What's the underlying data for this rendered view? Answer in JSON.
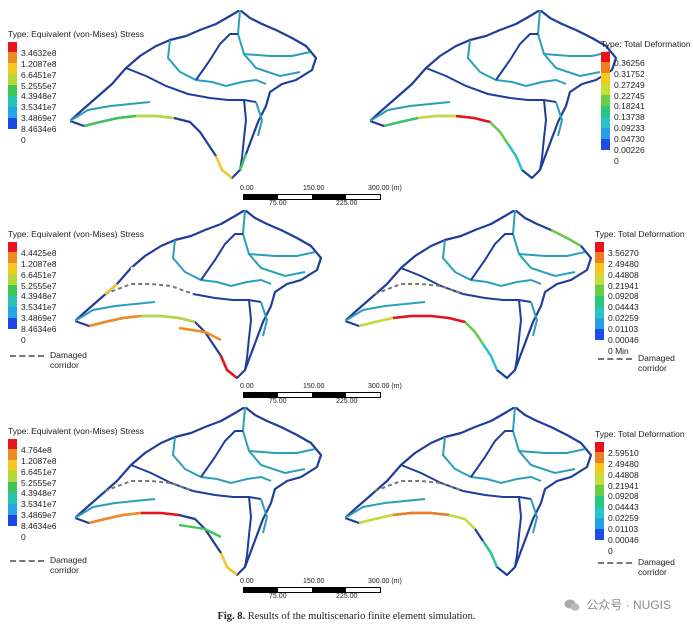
{
  "panels": {
    "r1_left": {
      "title": "Type: Equivalent (von-Mises) Stress",
      "levels": [
        "3.4632e8",
        "1.2087e8",
        "6.6451e7",
        "5.2555e7",
        "4.3948e7",
        "3.5341e7",
        "3.4869e7",
        "8.4634e6",
        "0"
      ],
      "damaged": false
    },
    "r1_right": {
      "title": "Type: Total Deformation",
      "levels": [
        "0.36256",
        "0.31752",
        "0.27249",
        "0.22745",
        "0.18241",
        "0.13738",
        "0.09233",
        "0.04730",
        "0.00226",
        "0"
      ],
      "damaged": false
    },
    "r2_left": {
      "title": "Type: Equivalent (von-Mises) Stress",
      "levels": [
        "4.4425e8",
        "1.2087e8",
        "6.6451e7",
        "5.2555e7",
        "4.3948e7",
        "3.5341e7",
        "3.4869e7",
        "8.4634e6",
        "0"
      ],
      "damaged": true
    },
    "r2_right": {
      "title": "Type: Total Deformation",
      "levels": [
        "3.56270",
        "2.49480",
        "0.44808",
        "0.21941",
        "0.09208",
        "0.04443",
        "0.02259",
        "0.01103",
        "0.00046",
        "0 Min"
      ],
      "damaged": true
    },
    "r3_left": {
      "title": "Type: Equivalent (von-Mises) Stress",
      "levels": [
        "4.764e8",
        "1.2087e8",
        "6.6451e7",
        "5.2555e7",
        "4.3948e7",
        "3.5341e7",
        "3.4869e7",
        "8.4634e6",
        "0"
      ],
      "damaged": true
    },
    "r3_right": {
      "title": "Type: Total Deformation",
      "levels": [
        "2.59510",
        "2.49480",
        "0.44808",
        "0.21941",
        "0.09208",
        "0.04443",
        "0.02259",
        "0.01103",
        "0.00046",
        "0"
      ],
      "damaged": true
    }
  },
  "damaged_label_line1": "Damaged",
  "damaged_label_line2": "corridor",
  "scale": {
    "top": [
      "0.00",
      "150.00",
      "300.00 (m)"
    ],
    "bottom": [
      "75.00",
      "225.00"
    ]
  },
  "caption": {
    "label": "Fig. 8.",
    "text": "Results of the multiscenario finite element simulation."
  },
  "watermark": "公众号 · NUGIS",
  "colors": {
    "stress_legend": [
      "#e8141c",
      "#f08a24",
      "#f4c81e",
      "#b5d936",
      "#3ec55a",
      "#27c2b4",
      "#24a6e8",
      "#1c46e8"
    ],
    "deform_legend": [
      "#e8141c",
      "#f07d24",
      "#f4c81e",
      "#c6dd3a",
      "#68cc45",
      "#27c97e",
      "#27c4c8",
      "#279ee8",
      "#1d4be8"
    ],
    "network_base": "#1f3d9a",
    "network_secondary": "#2aa0b8",
    "damaged_corridor": "#777777"
  }
}
